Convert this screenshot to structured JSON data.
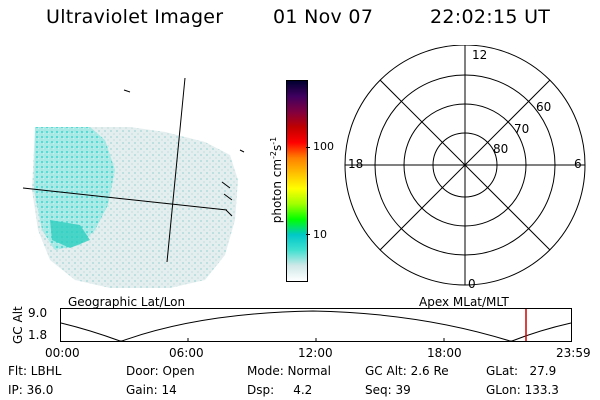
{
  "header": {
    "title": "Ultraviolet Imager",
    "date": "01 Nov 07",
    "time": "22:02:15 UT"
  },
  "colorbar": {
    "unit_label": "photon cm",
    "unit_sup1": "-2",
    "unit_mid": "s",
    "unit_sup2": "-1",
    "ticks": [
      "100",
      "10"
    ],
    "scale": "log",
    "colors": [
      "#ffffff",
      "#cfe8e8",
      "#40e0d0",
      "#00c8c8",
      "#00ff00",
      "#a0ff00",
      "#ffff00",
      "#ffc000",
      "#ff8000",
      "#ff0000",
      "#c00000",
      "#800040",
      "#400060",
      "#000030"
    ]
  },
  "polar": {
    "mlt_labels": {
      "top": "12",
      "bottom": "0",
      "left": "18",
      "right": "6"
    },
    "lat_labels": [
      "60",
      "70",
      "80"
    ]
  },
  "timeline": {
    "left_title": "Geographic Lat/Lon",
    "right_title": "Apex MLat/MLT",
    "y_axis_label": "GC Alt",
    "y_ticks": [
      "9.0",
      "1.8"
    ],
    "x_ticks": [
      "00:00",
      "06:00",
      "12:00",
      "18:00",
      "23:59"
    ],
    "current_marker_color": "#d00000"
  },
  "status": {
    "flt": "Flt: LBHL",
    "ip": "IP: 36.0",
    "door": "Door: Open",
    "gain": "Gain: 14",
    "mode": "Mode: Normal",
    "dsp": "Dsp:     4.2",
    "gc_alt": "GC Alt: 2.6 Re",
    "seq": "Seq: 39",
    "glat": "GLat:   27.9",
    "glon": "GLon: 133.3"
  }
}
